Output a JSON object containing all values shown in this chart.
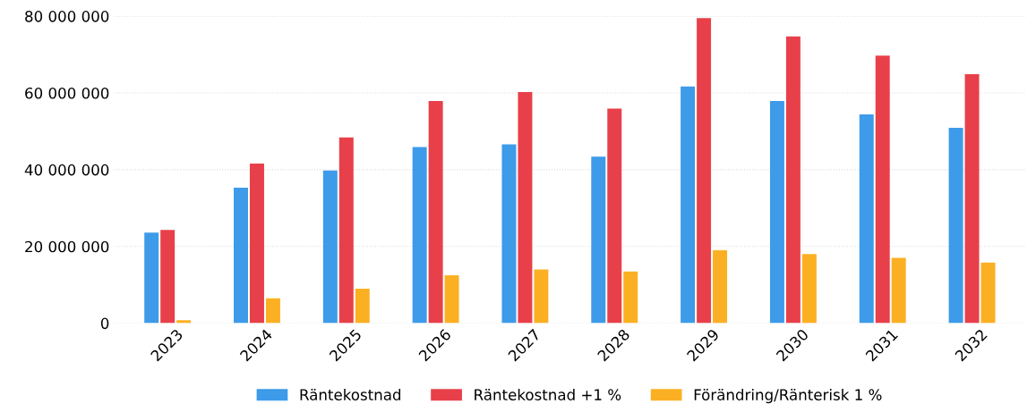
{
  "chart_data": {
    "type": "bar",
    "categories": [
      "2023",
      "2024",
      "2025",
      "2026",
      "2027",
      "2028",
      "2029",
      "2030",
      "2031",
      "2032"
    ],
    "series": [
      {
        "name": "Räntekostnad",
        "color": "#3d9be9",
        "values": [
          23600000,
          35300000,
          39800000,
          45900000,
          46600000,
          43400000,
          61700000,
          57900000,
          54400000,
          50900000
        ]
      },
      {
        "name": "Räntekostnad +1 %",
        "color": "#e8404a",
        "values": [
          24300000,
          41600000,
          48400000,
          57900000,
          60200000,
          55900000,
          79500000,
          74700000,
          69700000,
          64900000
        ]
      },
      {
        "name": "Förändring/Ränterisk 1 %",
        "color": "#fbb023",
        "values": [
          800000,
          6500000,
          9000000,
          12500000,
          14000000,
          13500000,
          19000000,
          18000000,
          17000000,
          15800000
        ]
      }
    ],
    "ylim": [
      0,
      80000000
    ],
    "yticks": [
      {
        "value": 0,
        "label": "0"
      },
      {
        "value": 20000000,
        "label": "20 000 000"
      },
      {
        "value": 40000000,
        "label": "40 000 000"
      },
      {
        "value": 60000000,
        "label": "60 000 000"
      },
      {
        "value": 80000000,
        "label": "80 000 000"
      }
    ],
    "grid": "y",
    "legend": "bottom"
  }
}
